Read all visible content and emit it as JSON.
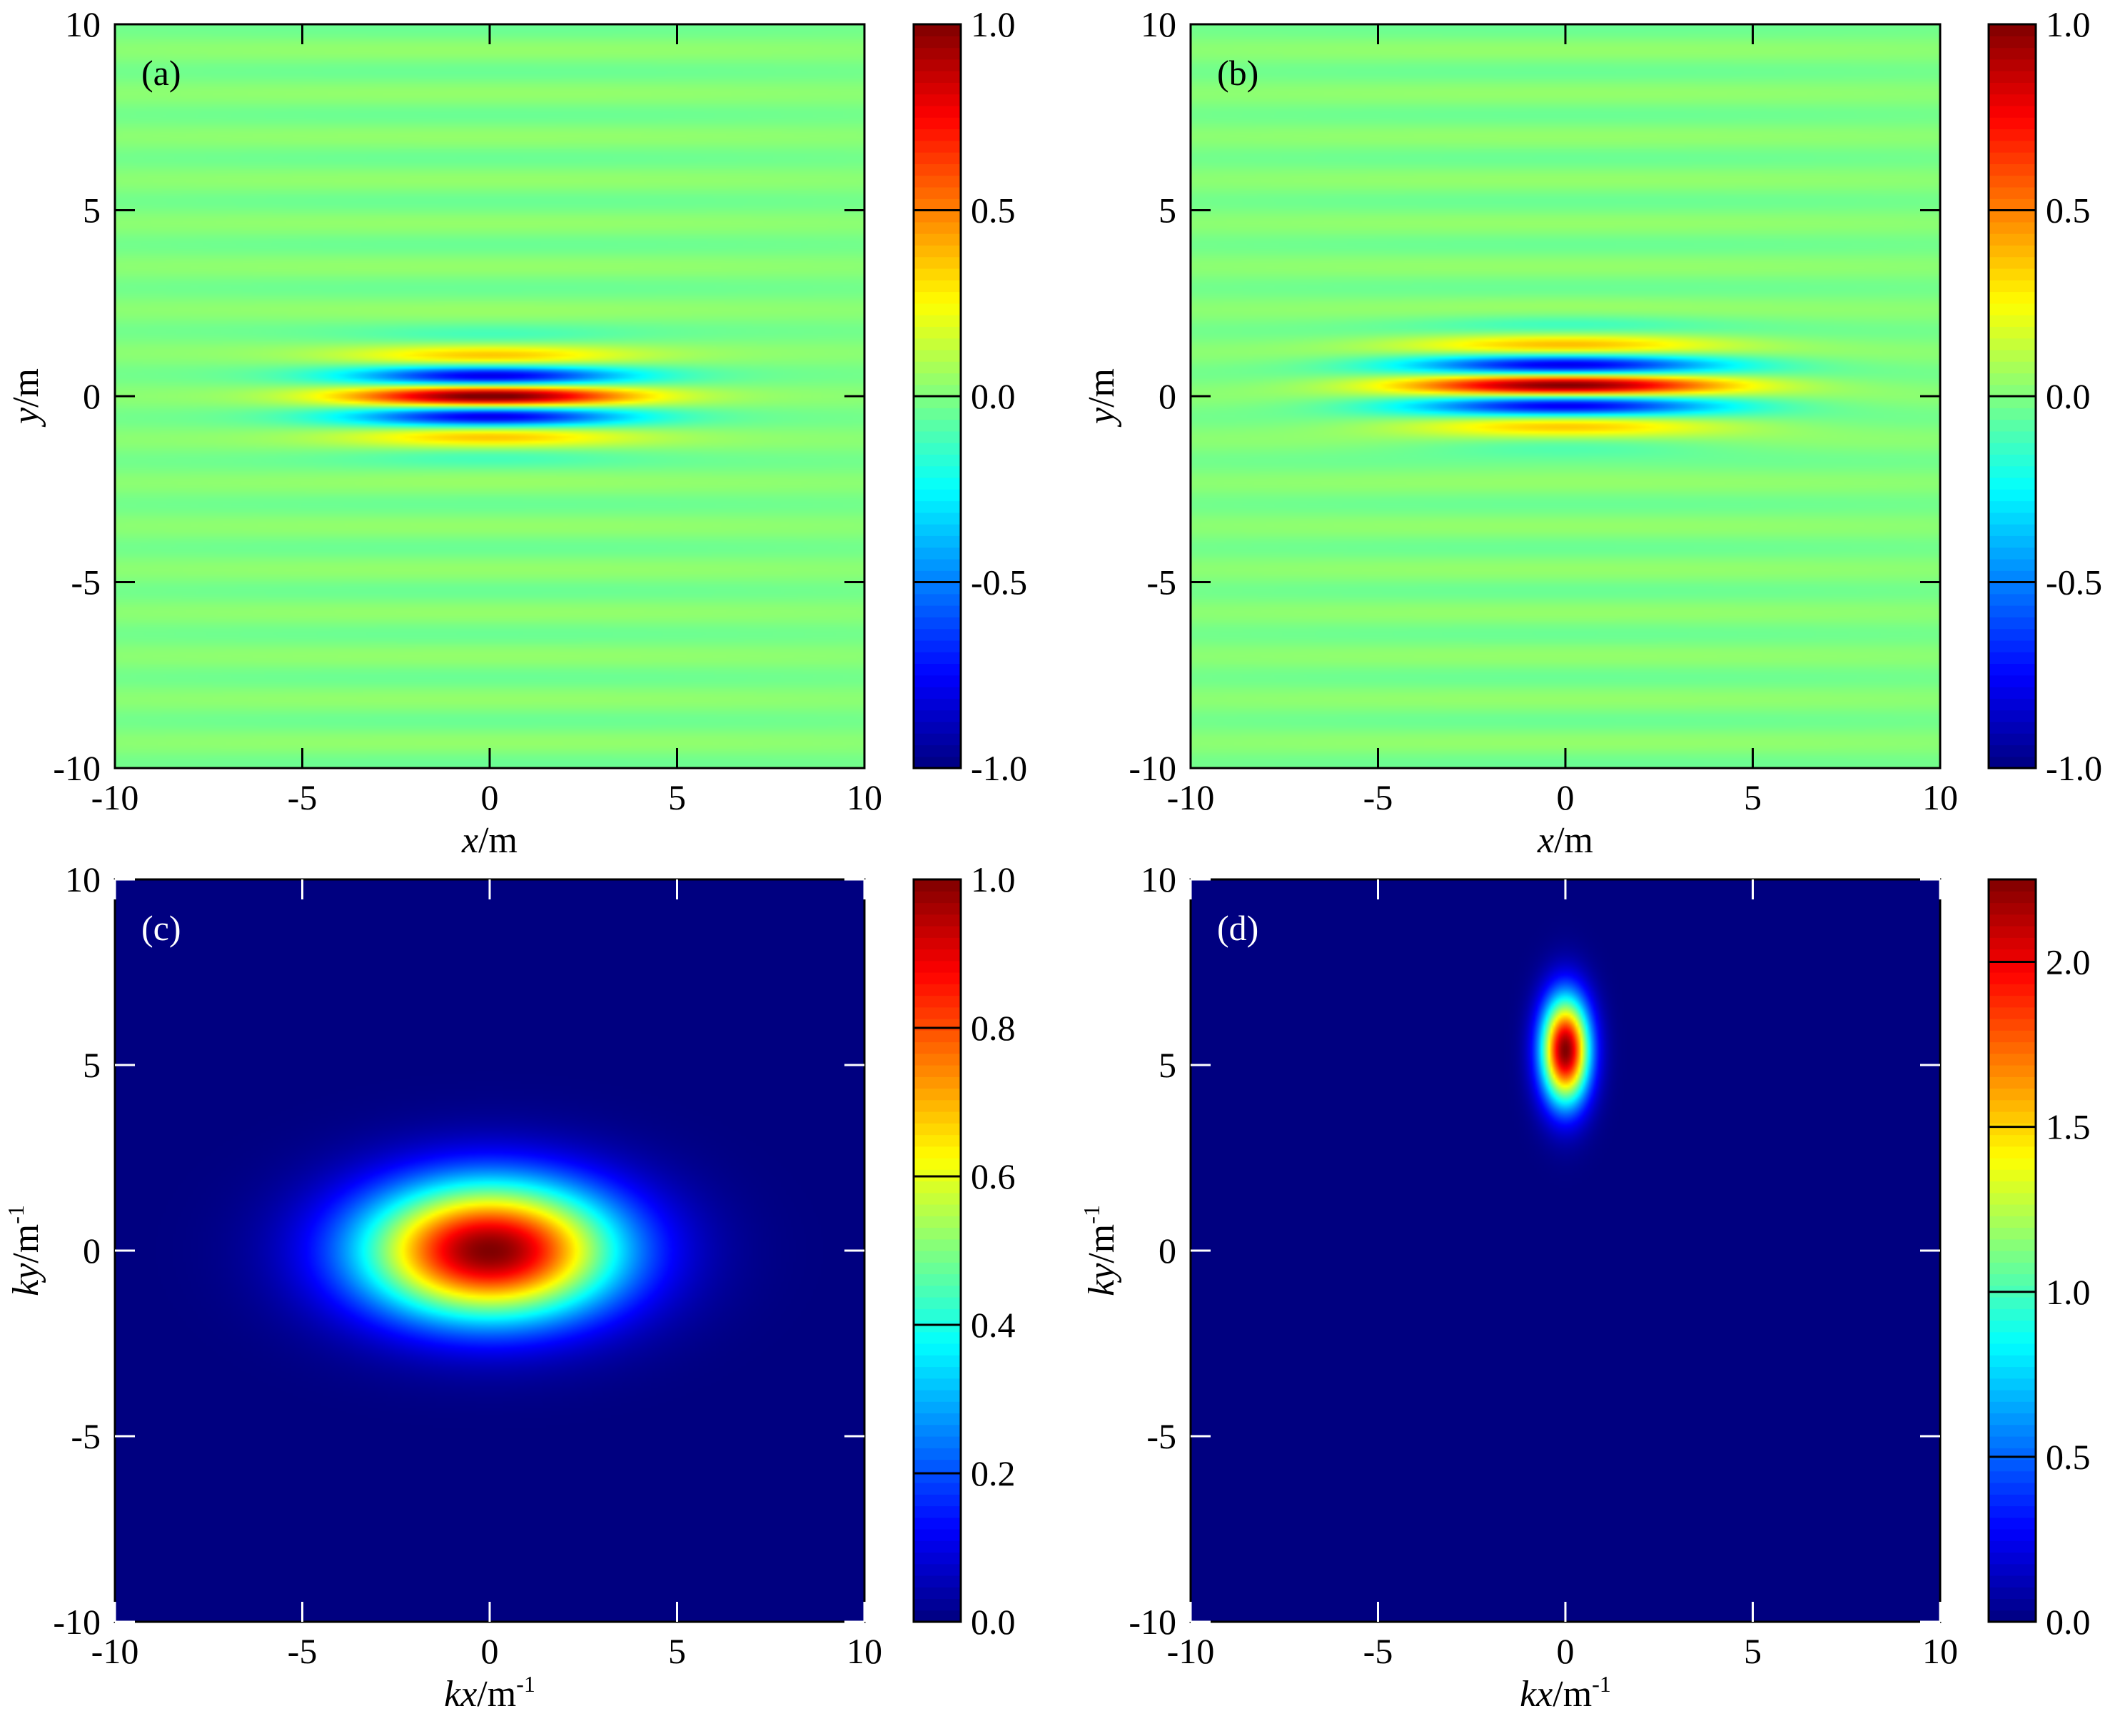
{
  "chart_data": [
    {
      "type": "heatmap",
      "panel_label": "(a)",
      "field": "oscillating",
      "xlabel_var": "x",
      "xlabel_unit": "/m",
      "xlabel_sup": "",
      "ylabel_var": "y",
      "ylabel_unit": "/m",
      "ylabel_sup": "",
      "xlim": [
        -10,
        10
      ],
      "ylim": [
        -10,
        10
      ],
      "xticks": [
        -10,
        -5,
        0,
        5,
        10
      ],
      "yticks": [
        -10,
        -5,
        0,
        5,
        10
      ],
      "xtick_labels": [
        "-10",
        "-5",
        "0",
        "5",
        "10"
      ],
      "ytick_labels": [
        "-10",
        "-5",
        "0",
        "5",
        "10"
      ],
      "show_xlabel": true,
      "colorbar": {
        "min": -1.0,
        "max": 1.0,
        "ticks": [
          -1.0,
          -0.5,
          0.0,
          0.5,
          1.0
        ],
        "labels": [
          "-1.0",
          "-0.5",
          "0.0",
          "0.5",
          "1.0"
        ]
      },
      "peak": {
        "x0": 0,
        "y0": 0,
        "sigma_x": 2.6,
        "sigma_y": 0.75,
        "k_y": 5.4,
        "phase": 0,
        "amplitude": 1.0
      },
      "label_color": "#000000",
      "tick_color": "#000000"
    },
    {
      "type": "heatmap",
      "panel_label": "(b)",
      "field": "oscillating",
      "xlabel_var": "x",
      "xlabel_unit": "/m",
      "xlabel_sup": "",
      "ylabel_var": "y",
      "ylabel_unit": "/m",
      "ylabel_sup": "",
      "xlim": [
        -10,
        10
      ],
      "ylim": [
        -10,
        10
      ],
      "xticks": [
        -10,
        -5,
        0,
        5,
        10
      ],
      "yticks": [
        -10,
        -5,
        0,
        5,
        10
      ],
      "xtick_labels": [
        "-10",
        "-5",
        "0",
        "5",
        "10"
      ],
      "ytick_labels": [
        "-10",
        "-5",
        "0",
        "5",
        "10"
      ],
      "show_xlabel": true,
      "colorbar": {
        "min": -1.0,
        "max": 1.0,
        "ticks": [
          -1.0,
          -0.5,
          0.0,
          0.5,
          1.0
        ],
        "labels": [
          "-1.0",
          "-0.5",
          "0.0",
          "0.5",
          "1.0"
        ]
      },
      "peak": {
        "x0": 0,
        "y0": 0.3,
        "sigma_x": 3.0,
        "sigma_y": 0.8,
        "k_y": 5.4,
        "phase": 0,
        "amplitude": 1.0
      },
      "label_color": "#000000",
      "tick_color": "#000000"
    },
    {
      "type": "heatmap",
      "panel_label": "(c)",
      "field": "gaussian",
      "xlabel_var": "kx",
      "xlabel_unit": "/m",
      "xlabel_sup": "-1",
      "ylabel_var": "ky",
      "ylabel_unit": "/m",
      "ylabel_sup": "-1",
      "xlim": [
        -10,
        10
      ],
      "ylim": [
        -10,
        10
      ],
      "xticks": [
        -10,
        -5,
        0,
        5,
        10
      ],
      "yticks": [
        -10,
        -5,
        0,
        5,
        10
      ],
      "xtick_labels": [
        "-10",
        "-5",
        "0",
        "5",
        "10"
      ],
      "ytick_labels": [
        "-10",
        "-5",
        "0",
        "5",
        "10"
      ],
      "show_xlabel": true,
      "colorbar": {
        "min": 0.0,
        "max": 1.0,
        "ticks": [
          0.0,
          0.2,
          0.4,
          0.6,
          0.8,
          1.0
        ],
        "labels": [
          "0.0",
          "0.2",
          "0.4",
          "0.6",
          "0.8",
          "1.0"
        ]
      },
      "peak": {
        "x0": 0,
        "y0": 0,
        "sigma_x": 2.4,
        "sigma_y": 1.3,
        "amplitude": 1.0
      },
      "label_color": "#ffffff",
      "tick_color": "#ffffff"
    },
    {
      "type": "heatmap",
      "panel_label": "(d)",
      "field": "gaussian",
      "xlabel_var": "kx",
      "xlabel_unit": "/m",
      "xlabel_sup": "-1",
      "ylabel_var": "ky",
      "ylabel_unit": "/m",
      "ylabel_sup": "-1",
      "xlim": [
        -10,
        10
      ],
      "ylim": [
        -10,
        10
      ],
      "xticks": [
        -10,
        -5,
        0,
        5,
        10
      ],
      "yticks": [
        -10,
        -5,
        0,
        5,
        10
      ],
      "xtick_labels": [
        "-10",
        "-5",
        "0",
        "5",
        "10"
      ],
      "ytick_labels": [
        "-10",
        "-5",
        "0",
        "5",
        "10"
      ],
      "show_xlabel": true,
      "colorbar": {
        "min": 0.0,
        "max": 2.25,
        "ticks": [
          0.0,
          0.5,
          1.0,
          1.5,
          2.0
        ],
        "labels": [
          "0.0",
          "0.5",
          "1.0",
          "1.5",
          "2.0"
        ]
      },
      "peak": {
        "x0": 0,
        "y0": 5.4,
        "sigma_x": 0.45,
        "sigma_y": 1.0,
        "amplitude": 2.25
      },
      "label_color": "#ffffff",
      "tick_color": "#ffffff"
    }
  ],
  "colormap": "jet"
}
